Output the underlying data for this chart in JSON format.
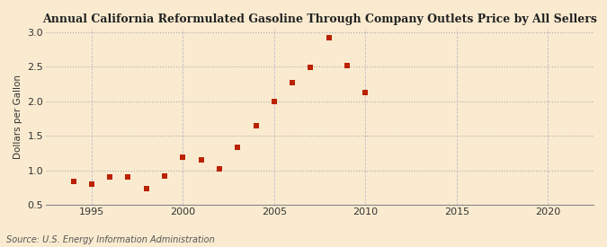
{
  "title": "Annual California Reformulated Gasoline Through Company Outlets Price by All Sellers",
  "ylabel": "Dollars per Gallon",
  "source": "Source: U.S. Energy Information Administration",
  "xlim": [
    1992.5,
    2022.5
  ],
  "ylim": [
    0.5,
    3.05
  ],
  "xticks": [
    1995,
    2000,
    2005,
    2010,
    2015,
    2020
  ],
  "yticks": [
    0.5,
    1.0,
    1.5,
    2.0,
    2.5,
    3.0
  ],
  "background_color": "#faebd0",
  "marker_color": "#bb2200",
  "years": [
    1994,
    1995,
    1996,
    1997,
    1998,
    1999,
    2000,
    2001,
    2002,
    2003,
    2004,
    2005,
    2006,
    2007,
    2008,
    2009,
    2010
  ],
  "values": [
    0.84,
    0.8,
    0.9,
    0.9,
    0.73,
    0.91,
    1.19,
    1.15,
    1.02,
    1.33,
    1.64,
    1.99,
    2.27,
    2.49,
    2.92,
    2.52,
    2.13
  ]
}
